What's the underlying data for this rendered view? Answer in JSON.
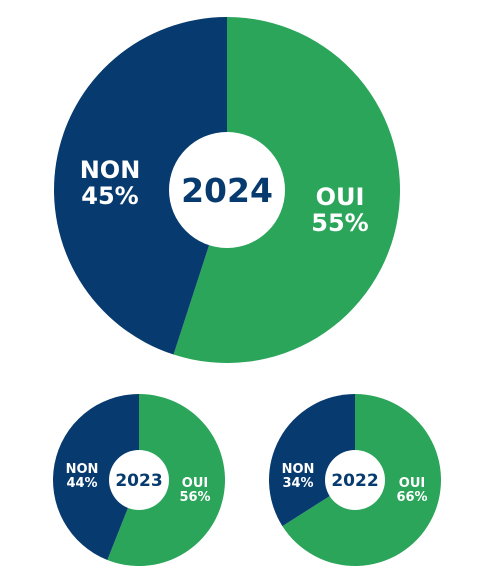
{
  "chart_data": [
    {
      "type": "pie",
      "center_label": "2024",
      "slices": [
        {
          "label": "OUI",
          "value": 55,
          "value_label": "55%",
          "color": "#2ba55a"
        },
        {
          "label": "NON",
          "value": 45,
          "value_label": "45%",
          "color": "#073a6e"
        }
      ]
    },
    {
      "type": "pie",
      "center_label": "2023",
      "slices": [
        {
          "label": "OUI",
          "value": 56,
          "value_label": "56%",
          "color": "#2ba55a"
        },
        {
          "label": "NON",
          "value": 44,
          "value_label": "44%",
          "color": "#073a6e"
        }
      ]
    },
    {
      "type": "pie",
      "center_label": "2022",
      "slices": [
        {
          "label": "OUI",
          "value": 66,
          "value_label": "66%",
          "color": "#2ba55a"
        },
        {
          "label": "NON",
          "value": 34,
          "value_label": "34%",
          "color": "#073a6e"
        }
      ]
    }
  ]
}
